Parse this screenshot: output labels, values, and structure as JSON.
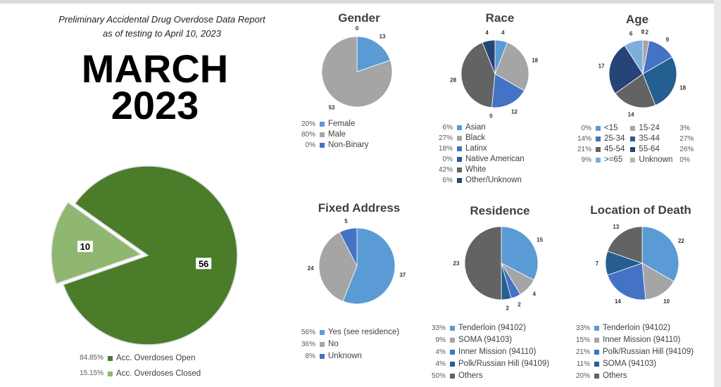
{
  "header": {
    "title": "Preliminary Accidental Drug Overdose Data Report",
    "subtitle": "as of testing to April 10, 2023",
    "month": "MARCH",
    "year": "2023"
  },
  "chart_data": [
    {
      "id": "status",
      "type": "pie",
      "title": "",
      "categories": [
        "Acc. Overdoses Open",
        "Acc. Overdoses Closed"
      ],
      "values": [
        56,
        10
      ],
      "percent_labels": [
        "84.85%",
        "15.15%"
      ],
      "colors": [
        "#4a7c2a",
        "#8fb76f"
      ],
      "exploded": [
        false,
        true
      ],
      "legend_placement": "bottom"
    },
    {
      "id": "gender",
      "type": "pie",
      "title": "Gender",
      "categories": [
        "Female",
        "Male",
        "Non-Binary"
      ],
      "values": [
        13,
        53,
        0
      ],
      "percent_labels": [
        "20%",
        "80%",
        "0%"
      ],
      "colors": [
        "#5b9bd5",
        "#a5a5a5",
        "#4472c4"
      ],
      "legend_placement": "bottom"
    },
    {
      "id": "race",
      "type": "pie",
      "title": "Race",
      "categories": [
        "Asian",
        "Black",
        "Latinx",
        "Native American",
        "White",
        "Other/Unknown"
      ],
      "values": [
        4,
        18,
        12,
        0,
        28,
        4
      ],
      "percent_labels": [
        "6%",
        "27%",
        "18%",
        "0%",
        "42%",
        "6%"
      ],
      "colors": [
        "#5b9bd5",
        "#a5a5a5",
        "#4472c4",
        "#255e91",
        "#636363",
        "#264478"
      ],
      "legend_placement": "bottom"
    },
    {
      "id": "age",
      "type": "pie",
      "title": "Age",
      "categories": [
        "<15",
        "15-24",
        "25-34",
        "35-44",
        "45-54",
        "55-64",
        ">=65",
        "Unknown"
      ],
      "values": [
        0,
        2,
        9,
        18,
        14,
        17,
        6,
        0
      ],
      "percent_labels": [
        "0%",
        "3%",
        "14%",
        "27%",
        "21%",
        "26%",
        "9%",
        "0%"
      ],
      "colors": [
        "#5b9bd5",
        "#a5a5a5",
        "#4472c4",
        "#255e91",
        "#636363",
        "#264478",
        "#7cafdd",
        "#b7b7b7"
      ],
      "legend_placement": "bottom"
    },
    {
      "id": "fixed",
      "type": "pie",
      "title": "Fixed Address",
      "categories": [
        "Yes (see residence)",
        "No",
        "Unknown"
      ],
      "values": [
        37,
        24,
        5
      ],
      "percent_labels": [
        "56%",
        "36%",
        "8%"
      ],
      "colors": [
        "#5b9bd5",
        "#a5a5a5",
        "#4472c4"
      ],
      "legend_placement": "bottom"
    },
    {
      "id": "residence",
      "type": "pie",
      "title": "Residence",
      "categories": [
        "Tenderloin (94102)",
        "SOMA (94103)",
        "Inner Mission (94110)",
        "Polk/Russian Hill (94109)",
        "Others"
      ],
      "values": [
        15,
        4,
        2,
        2,
        23
      ],
      "percent_labels": [
        "33%",
        "9%",
        "4%",
        "4%",
        "50%"
      ],
      "colors": [
        "#5b9bd5",
        "#a5a5a5",
        "#4472c4",
        "#255e91",
        "#636363"
      ],
      "legend_placement": "bottom"
    },
    {
      "id": "location",
      "type": "pie",
      "title": "Location of Death",
      "categories": [
        "Tenderloin (94102)",
        "Inner Mission (94110)",
        "Polk/Russian Hill (94109)",
        "SOMA (94103)",
        "Others"
      ],
      "values": [
        22,
        10,
        14,
        7,
        13
      ],
      "percent_labels": [
        "33%",
        "15%",
        "21%",
        "11%",
        "20%"
      ],
      "colors": [
        "#5b9bd5",
        "#a5a5a5",
        "#4472c4",
        "#255e91",
        "#636363"
      ],
      "legend_placement": "bottom"
    }
  ]
}
